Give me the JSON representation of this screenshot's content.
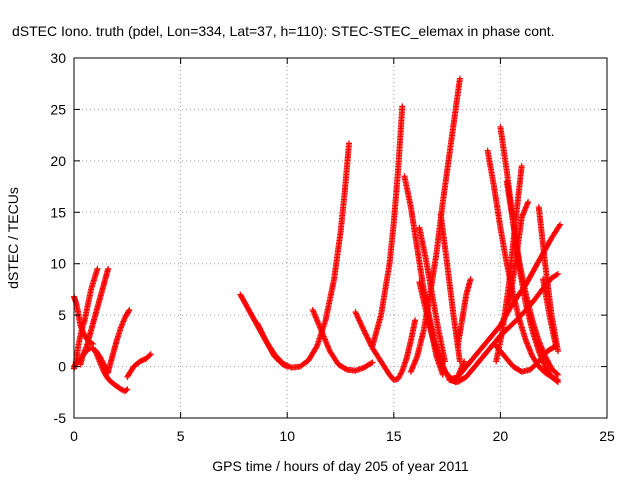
{
  "chart_data": {
    "type": "scatter",
    "title": "dSTEC Iono. truth (pdel, Lon=334, Lat=37, h=110): STEC-STEC_elemax in phase cont.",
    "xlabel": "GPS time / hours of day 205 of year 2011",
    "ylabel": "dSTEC  / TECUs",
    "xlim": [
      0,
      25
    ],
    "ylim": [
      -5,
      30
    ],
    "xticks": [
      "0",
      "5",
      "10",
      "15",
      "20",
      "25"
    ],
    "yticks": [
      "-5",
      "0",
      "5",
      "10",
      "15",
      "20",
      "25",
      "30"
    ],
    "grid": true,
    "marker": "+",
    "color": "#ff0000",
    "series": [
      {
        "x": [
          0.0,
          0.1,
          0.2,
          0.3,
          0.5,
          0.7,
          0.9
        ],
        "y": [
          6.8,
          6.2,
          5.2,
          4.0,
          3.0,
          2.4,
          2.2
        ]
      },
      {
        "x": [
          0.0,
          0.1,
          0.2,
          0.35,
          0.5,
          0.65,
          0.8,
          0.95,
          1.1
        ],
        "y": [
          -0.2,
          0.5,
          2.0,
          3.5,
          4.5,
          6.0,
          7.5,
          8.5,
          9.5
        ]
      },
      {
        "x": [
          0.3,
          0.4,
          0.6,
          0.8,
          1.0,
          1.2,
          1.4,
          1.6
        ],
        "y": [
          0.2,
          1.0,
          2.0,
          3.5,
          5.0,
          6.5,
          8.0,
          9.5
        ]
      },
      {
        "x": [
          0.0,
          0.2,
          0.4,
          0.6,
          0.8,
          1.0,
          1.2,
          1.4,
          1.6
        ],
        "y": [
          0.0,
          0.5,
          1.0,
          1.6,
          1.8,
          1.6,
          1.0,
          0.2,
          -0.6
        ]
      },
      {
        "x": [
          1.0,
          1.2,
          1.4,
          1.6,
          1.8,
          2.0,
          2.2,
          2.4,
          2.5
        ],
        "y": [
          1.5,
          0.5,
          -0.5,
          -1.2,
          -1.6,
          -1.9,
          -2.2,
          -2.4,
          -2.2
        ]
      },
      {
        "x": [
          1.6,
          1.8,
          2.0,
          2.2,
          2.4,
          2.6
        ],
        "y": [
          -0.5,
          1.0,
          2.5,
          3.8,
          4.8,
          5.5
        ]
      },
      {
        "x": [
          2.5,
          2.8,
          3.1,
          3.4,
          3.6
        ],
        "y": [
          -1.0,
          0.0,
          0.5,
          0.8,
          1.2
        ]
      },
      {
        "x": [
          7.8,
          8.2,
          8.6,
          9.0,
          9.4,
          9.8,
          10.2,
          10.6,
          11.0,
          11.4,
          11.8,
          12.2,
          12.5,
          12.7,
          12.9
        ],
        "y": [
          7.0,
          5.5,
          4.0,
          2.5,
          1.2,
          0.3,
          -0.1,
          0.0,
          0.6,
          2.0,
          4.5,
          8.5,
          13.0,
          17.0,
          21.7
        ]
      },
      {
        "x": [
          8.6,
          9.0,
          9.4,
          9.8,
          10.0
        ],
        "y": [
          4.2,
          2.5,
          1.0,
          0.2,
          0.0
        ]
      },
      {
        "x": [
          11.2,
          11.6,
          12.0,
          12.4,
          12.8,
          13.2,
          13.6,
          14.0
        ],
        "y": [
          5.5,
          3.5,
          1.5,
          0.2,
          -0.3,
          -0.4,
          -0.1,
          0.4
        ]
      },
      {
        "x": [
          13.2,
          13.6,
          14.0,
          14.4,
          14.8,
          15.0,
          15.2,
          15.4,
          15.6,
          15.8,
          16.0
        ],
        "y": [
          5.3,
          3.5,
          1.8,
          0.5,
          -0.8,
          -1.3,
          -1.2,
          -0.4,
          0.8,
          2.5,
          4.5
        ]
      },
      {
        "x": [
          14.0,
          14.4,
          14.8,
          15.0,
          15.2,
          15.4
        ],
        "y": [
          2.0,
          5.0,
          10.0,
          14.0,
          19.0,
          25.3
        ]
      },
      {
        "x": [
          15.5,
          15.8,
          16.1,
          16.4,
          16.7,
          17.0,
          17.3
        ],
        "y": [
          18.5,
          15.5,
          11.5,
          7.5,
          4.0,
          1.0,
          -0.8
        ]
      },
      {
        "x": [
          15.8,
          16.1,
          16.4,
          16.7,
          17.0,
          17.3,
          17.6,
          17.9,
          18.1
        ],
        "y": [
          -0.5,
          1.0,
          3.5,
          7.0,
          11.0,
          16.0,
          20.5,
          25.0,
          28.0
        ]
      },
      {
        "x": [
          16.2,
          16.5,
          16.8,
          17.1,
          17.4,
          17.7,
          18.0,
          18.3
        ],
        "y": [
          8.2,
          5.5,
          3.0,
          1.0,
          -0.5,
          -1.2,
          -1.0,
          0.5
        ]
      },
      {
        "x": [
          16.2,
          16.5,
          16.8,
          17.1,
          17.4
        ],
        "y": [
          13.5,
          10.5,
          7.0,
          3.5,
          0.5
        ]
      },
      {
        "x": [
          16.4,
          16.7,
          17.0,
          17.3,
          17.6,
          17.9
        ],
        "y": [
          7.5,
          4.5,
          2.0,
          0.0,
          -1.2,
          -1.5
        ]
      },
      {
        "x": [
          17.2,
          17.5,
          17.8,
          18.1
        ],
        "y": [
          14.8,
          10.0,
          5.0,
          0.5
        ]
      },
      {
        "x": [
          17.6,
          18.0,
          18.4,
          18.8,
          19.2,
          19.6,
          20.0,
          20.4,
          20.8,
          21.2,
          21.6,
          22.0,
          22.4,
          22.7
        ],
        "y": [
          -1.3,
          -1.5,
          -1.0,
          0.0,
          1.0,
          2.0,
          3.0,
          3.8,
          4.6,
          5.5,
          6.5,
          7.6,
          8.6,
          9.0
        ]
      },
      {
        "x": [
          18.0,
          18.4,
          18.8,
          19.2,
          19.6,
          20.0,
          20.4,
          20.8,
          21.2,
          21.6,
          22.0,
          22.4,
          22.8
        ],
        "y": [
          -1.0,
          0.0,
          1.0,
          2.0,
          3.0,
          4.0,
          5.5,
          6.8,
          8.0,
          9.5,
          11.0,
          12.5,
          13.8
        ]
      },
      {
        "x": [
          18.0,
          18.2,
          18.4,
          18.6
        ],
        "y": [
          2.0,
          4.5,
          7.0,
          8.5
        ]
      },
      {
        "x": [
          19.4,
          19.7,
          20.0,
          20.3,
          20.6,
          20.9,
          21.2,
          21.5,
          21.8,
          22.1,
          22.4,
          22.7
        ],
        "y": [
          21.0,
          17.5,
          13.5,
          10.0,
          7.0,
          4.5,
          2.5,
          1.0,
          0.0,
          -0.6,
          -1.0,
          -1.3
        ]
      },
      {
        "x": [
          20.0,
          20.3,
          20.6,
          20.9,
          21.2,
          21.5,
          21.8,
          22.1,
          22.4,
          22.7
        ],
        "y": [
          23.3,
          19.0,
          14.0,
          9.5,
          6.0,
          3.5,
          1.5,
          0.0,
          -1.0,
          -1.5
        ]
      },
      {
        "x": [
          20.3,
          20.6,
          20.9,
          21.2,
          21.5,
          21.8,
          22.1,
          22.4,
          22.7
        ],
        "y": [
          18.0,
          14.0,
          10.0,
          7.0,
          4.5,
          2.5,
          1.0,
          -0.2,
          -0.8
        ]
      },
      {
        "x": [
          19.8,
          20.1,
          20.4,
          20.7,
          21.0
        ],
        "y": [
          0.5,
          3.5,
          8.0,
          14.0,
          19.5
        ]
      },
      {
        "x": [
          20.4,
          20.7,
          21.0,
          21.3
        ],
        "y": [
          6.0,
          10.0,
          14.5,
          16.0
        ]
      },
      {
        "x": [
          19.8,
          20.2,
          20.6,
          21.0,
          21.4,
          21.8,
          22.2,
          22.6
        ],
        "y": [
          2.0,
          1.0,
          0.0,
          -0.5,
          -0.3,
          0.5,
          1.5,
          2.0
        ]
      },
      {
        "x": [
          21.8,
          22.1,
          22.4,
          22.7
        ],
        "y": [
          15.5,
          10.0,
          5.0,
          1.5
        ]
      },
      {
        "x": [
          22.0,
          22.3,
          22.6
        ],
        "y": [
          8.5,
          5.0,
          2.0
        ]
      }
    ]
  }
}
